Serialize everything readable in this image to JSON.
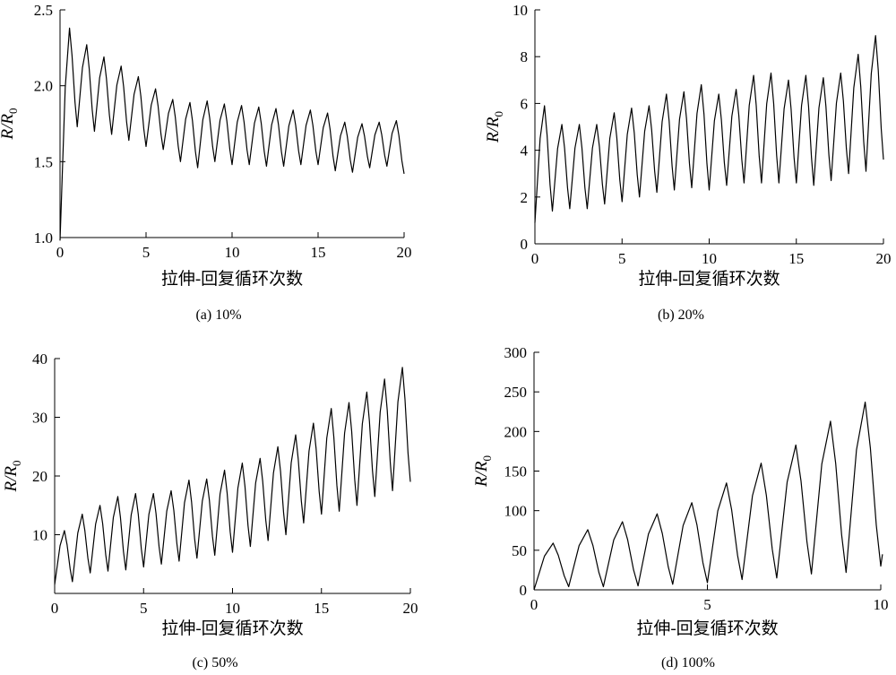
{
  "chart_data": [
    {
      "type": "line",
      "caption": "(a) 10%",
      "xlabel": "拉伸-回复循环次数",
      "ylabel": "R/R0",
      "ylabel_main": "R/R",
      "ylabel_sub": "0",
      "xlim": [
        0,
        20
      ],
      "ylim": [
        1.0,
        2.5
      ],
      "xticks": [
        0,
        5,
        10,
        15,
        20
      ],
      "yticks": [
        1.0,
        1.5,
        2.0,
        2.5
      ],
      "ytick_labels": [
        "1.0",
        "1.5",
        "2.0",
        "2.5"
      ],
      "series": [
        {
          "peaks": [
            2.38,
            2.27,
            2.19,
            2.13,
            2.06,
            1.98,
            1.91,
            1.89,
            1.9,
            1.88,
            1.87,
            1.86,
            1.85,
            1.84,
            1.84,
            1.82,
            1.76,
            1.75,
            1.76,
            1.77
          ],
          "valleys": [
            1.73,
            1.7,
            1.68,
            1.64,
            1.6,
            1.58,
            1.5,
            1.46,
            1.5,
            1.48,
            1.48,
            1.47,
            1.47,
            1.48,
            1.48,
            1.44,
            1.43,
            1.46,
            1.47,
            1.42
          ],
          "start_value": 0.98
        }
      ]
    },
    {
      "type": "line",
      "caption": "(b) 20%",
      "xlabel": "拉伸-回复循环次数",
      "ylabel": "R/R0",
      "ylabel_main": "R/R",
      "ylabel_sub": "0",
      "xlim": [
        0,
        20
      ],
      "ylim": [
        0,
        10
      ],
      "xticks": [
        0,
        5,
        10,
        15,
        20
      ],
      "yticks": [
        0,
        2,
        4,
        6,
        8,
        10
      ],
      "ytick_labels": [
        "0",
        "2",
        "4",
        "6",
        "8",
        "10"
      ],
      "series": [
        {
          "peaks": [
            5.9,
            5.1,
            5.1,
            5.1,
            5.6,
            5.8,
            5.9,
            6.4,
            6.5,
            6.8,
            6.4,
            6.6,
            7.2,
            7.3,
            7.0,
            7.2,
            7.1,
            7.3,
            8.1,
            8.9
          ],
          "valleys": [
            1.4,
            1.5,
            1.5,
            1.7,
            1.8,
            2.0,
            2.2,
            2.3,
            2.4,
            2.3,
            2.5,
            2.6,
            2.6,
            2.6,
            2.6,
            2.5,
            2.7,
            3.0,
            3.1,
            3.6
          ],
          "start_value": 0.9
        }
      ]
    },
    {
      "type": "line",
      "caption": "(c) 50%",
      "xlabel": "拉伸-回复循环次数",
      "ylabel": "R/R0",
      "ylabel_main": "R/R",
      "ylabel_sub": "0",
      "xlim": [
        0,
        20
      ],
      "ylim": [
        0,
        40
      ],
      "xticks": [
        0,
        5,
        10,
        15,
        20
      ],
      "yticks": [
        10,
        20,
        30,
        40
      ],
      "ytick_labels": [
        "10",
        "20",
        "30",
        "40"
      ],
      "series": [
        {
          "peaks": [
            10.7,
            13.5,
            15.0,
            16.5,
            17.0,
            17.0,
            17.5,
            19.3,
            19.5,
            21.0,
            22.2,
            23.0,
            25.0,
            27.0,
            29.0,
            31.5,
            32.5,
            34.3,
            36.5,
            38.5
          ],
          "valleys": [
            2.0,
            3.5,
            3.8,
            4.0,
            4.5,
            5.0,
            5.5,
            6.0,
            6.5,
            7.0,
            8.0,
            9.0,
            10.0,
            12.0,
            13.5,
            14.0,
            15.0,
            16.5,
            17.5,
            19.0
          ],
          "start_value": 1.5
        }
      ]
    },
    {
      "type": "line",
      "caption": "(d) 100%",
      "xlabel": "拉伸-回复循环次数",
      "ylabel": "R/R0",
      "ylabel_main": "R/R",
      "ylabel_sub": "0",
      "xlim": [
        0,
        10
      ],
      "ylim": [
        0,
        300
      ],
      "xticks": [
        0,
        5,
        10
      ],
      "yticks": [
        0,
        50,
        100,
        150,
        200,
        250,
        300
      ],
      "ytick_labels": [
        "0",
        "50",
        "100",
        "150",
        "200",
        "250",
        "300"
      ],
      "series": [
        {
          "peaks": [
            59,
            76,
            86,
            96,
            110,
            135,
            160,
            183,
            213,
            237
          ],
          "valleys": [
            4,
            4,
            5,
            7,
            9,
            13,
            15,
            20,
            22,
            30
          ],
          "start_value": 0,
          "end_value": 45
        }
      ]
    }
  ]
}
